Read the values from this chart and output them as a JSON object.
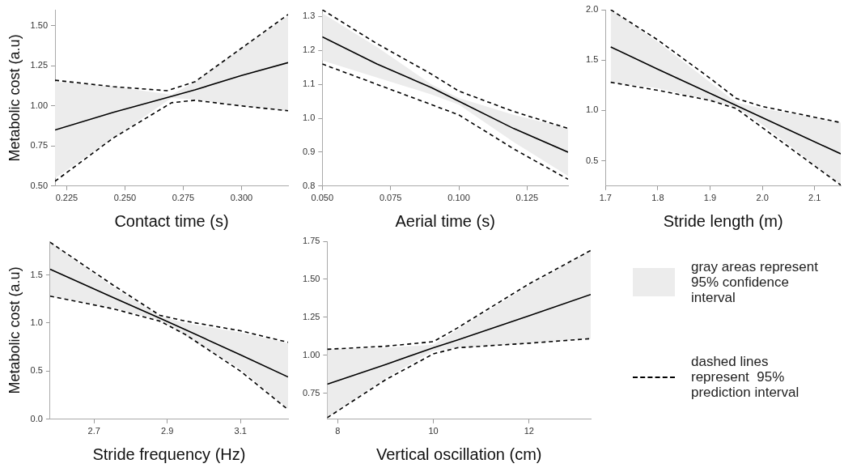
{
  "chart_data": [
    {
      "type": "line",
      "xlabel": "Contact time (s)",
      "ylabel": "Metabolic cost (a.u)",
      "xlim": [
        0.22,
        0.32
      ],
      "ylim": [
        0.5,
        1.6
      ],
      "xticks": [
        {
          "value": 0.225,
          "label": "0.225"
        },
        {
          "value": 0.25,
          "label": "0.250"
        },
        {
          "value": 0.275,
          "label": "0.275"
        },
        {
          "value": 0.3,
          "label": "0.300"
        }
      ],
      "yticks": [
        {
          "value": 0.5,
          "label": "0.50"
        },
        {
          "value": 0.75,
          "label": "0.75"
        },
        {
          "value": 1,
          "label": "1.00"
        },
        {
          "value": 1.25,
          "label": "1.25"
        },
        {
          "value": 1.5,
          "label": "1.50"
        }
      ],
      "grid": false,
      "legend": false,
      "marker": "none",
      "series": [
        {
          "color": "#000000",
          "line_style": "solid",
          "x": [
            0.22,
            0.245,
            0.27,
            0.28,
            0.3,
            0.32
          ],
          "values": [
            0.85,
            0.96,
            1.06,
            1.1,
            1.19,
            1.27
          ],
          "lower": [
            0.55,
            0.8,
            1.05,
            1.04,
            1.0,
            0.97
          ],
          "upper": [
            1.15,
            1.12,
            1.07,
            1.15,
            1.36,
            1.56
          ]
        },
        {
          "color": "#000000",
          "line_style": "dashed",
          "x": [
            0.22,
            0.245,
            0.268,
            0.28,
            0.3,
            0.32
          ],
          "values": [
            1.16,
            1.12,
            1.095,
            1.15,
            1.36,
            1.57
          ]
        },
        {
          "color": "#000000",
          "line_style": "dashed",
          "x": [
            0.22,
            0.245,
            0.27,
            0.28,
            0.3,
            0.32
          ],
          "values": [
            0.53,
            0.8,
            1.02,
            1.035,
            1.0,
            0.97
          ]
        }
      ]
    },
    {
      "type": "line",
      "xlabel": "Aerial time (s)",
      "xlim": [
        0.05,
        0.14
      ],
      "ylim": [
        0.8,
        1.32
      ],
      "xticks": [
        {
          "value": 0.05,
          "label": "0.050"
        },
        {
          "value": 0.075,
          "label": "0.075"
        },
        {
          "value": 0.1,
          "label": "0.100"
        },
        {
          "value": 0.125,
          "label": "0.125"
        }
      ],
      "yticks": [
        0.8,
        0.9,
        {
          "value": 1,
          "label": "1.0"
        },
        1.1,
        1.2,
        1.3
      ],
      "grid": false,
      "legend": false,
      "marker": "none",
      "series": [
        {
          "color": "#000000",
          "line_style": "solid",
          "x": [
            0.05,
            0.07,
            0.09,
            0.1,
            0.12,
            0.14
          ],
          "values": [
            1.24,
            1.16,
            1.09,
            1.05,
            0.97,
            0.9
          ],
          "lower": [
            1.17,
            1.12,
            1.07,
            1.04,
            0.93,
            0.83
          ],
          "upper": [
            1.31,
            1.21,
            1.1,
            1.06,
            1.01,
            0.97
          ]
        },
        {
          "color": "#000000",
          "line_style": "dashed",
          "x": [
            0.05,
            0.07,
            0.09,
            0.1,
            0.12,
            0.14
          ],
          "values": [
            1.32,
            1.22,
            1.13,
            1.08,
            1.02,
            0.97
          ]
        },
        {
          "color": "#000000",
          "line_style": "dashed",
          "x": [
            0.05,
            0.07,
            0.09,
            0.1,
            0.12,
            0.14
          ],
          "values": [
            1.16,
            1.1,
            1.04,
            1.01,
            0.91,
            0.82
          ]
        }
      ]
    },
    {
      "type": "line",
      "xlabel": "Stride length (m)",
      "xlim": [
        1.7,
        2.15
      ],
      "ylim": [
        0.25,
        2.0
      ],
      "xticks": [
        1.7,
        1.8,
        1.9,
        {
          "value": 2,
          "label": "2.0"
        },
        2.1
      ],
      "yticks": [
        0.5,
        {
          "value": 1,
          "label": "1.0"
        },
        1.5,
        {
          "value": 2,
          "label": "2.0"
        }
      ],
      "grid": false,
      "legend": false,
      "marker": "none",
      "series": [
        {
          "color": "#000000",
          "line_style": "solid",
          "x": [
            1.71,
            1.8,
            1.9,
            1.95,
            2.0,
            2.15
          ],
          "values": [
            1.63,
            1.41,
            1.17,
            1.05,
            0.93,
            0.57
          ],
          "lower": [
            1.28,
            1.22,
            1.1,
            1.03,
            0.86,
            0.26
          ],
          "upper": [
            2.0,
            1.68,
            1.28,
            1.08,
            1.02,
            0.88
          ]
        },
        {
          "color": "#000000",
          "line_style": "dashed",
          "x": [
            1.71,
            1.8,
            1.9,
            1.95,
            2.0,
            2.15
          ],
          "values": [
            2.0,
            1.7,
            1.32,
            1.12,
            1.04,
            0.88
          ]
        },
        {
          "color": "#000000",
          "line_style": "dashed",
          "x": [
            1.71,
            1.8,
            1.9,
            1.95,
            2.0,
            2.15
          ],
          "values": [
            1.28,
            1.2,
            1.1,
            1.02,
            0.83,
            0.26
          ]
        }
      ]
    },
    {
      "type": "line",
      "xlabel": "Stride frequency (Hz)",
      "ylabel": "Metabolic cost (a.u)",
      "xlim": [
        2.58,
        3.23
      ],
      "ylim": [
        0,
        1.85
      ],
      "xticks": [
        2.7,
        2.9,
        3.1
      ],
      "yticks": [
        {
          "value": 0,
          "label": "0.0"
        },
        0.5,
        {
          "value": 1,
          "label": "1.0"
        },
        1.5
      ],
      "grid": false,
      "legend": false,
      "marker": "none",
      "series": [
        {
          "color": "#000000",
          "line_style": "solid",
          "x": [
            2.58,
            2.75,
            2.88,
            2.95,
            3.1,
            3.23
          ],
          "values": [
            1.56,
            1.27,
            1.05,
            0.93,
            0.67,
            0.44
          ],
          "lower": [
            1.28,
            1.16,
            1.03,
            0.87,
            0.52,
            0.11
          ],
          "upper": [
            1.84,
            1.38,
            1.07,
            1.0,
            0.9,
            0.79
          ]
        },
        {
          "color": "#000000",
          "line_style": "dashed",
          "x": [
            2.58,
            2.75,
            2.88,
            2.95,
            3.1,
            3.23
          ],
          "values": [
            1.84,
            1.4,
            1.08,
            1.02,
            0.92,
            0.8
          ]
        },
        {
          "color": "#000000",
          "line_style": "dashed",
          "x": [
            2.58,
            2.75,
            2.88,
            2.95,
            3.1,
            3.23
          ],
          "values": [
            1.28,
            1.15,
            1.02,
            0.88,
            0.5,
            0.1
          ]
        }
      ]
    },
    {
      "type": "line",
      "xlabel": "Vertical oscillation (cm)",
      "xlim": [
        7.78,
        13.29
      ],
      "ylim": [
        0.58,
        1.75
      ],
      "xticks": [
        8,
        10,
        12
      ],
      "yticks": [
        {
          "value": 0.75,
          "label": "0.75"
        },
        {
          "value": 1,
          "label": "1.00"
        },
        {
          "value": 1.25,
          "label": "1.25"
        },
        {
          "value": 1.5,
          "label": "1.50"
        },
        {
          "value": 1.75,
          "label": "1.75"
        }
      ],
      "grid": false,
      "legend": false,
      "marker": "none",
      "series": [
        {
          "color": "#000000",
          "line_style": "solid",
          "x": [
            7.78,
            9.0,
            10.0,
            10.5,
            12.0,
            13.29
          ],
          "values": [
            0.81,
            0.94,
            1.05,
            1.1,
            1.26,
            1.4
          ],
          "lower": [
            0.59,
            0.85,
            1.03,
            1.05,
            1.08,
            1.11
          ],
          "upper": [
            1.04,
            1.05,
            1.07,
            1.17,
            1.46,
            1.69
          ]
        },
        {
          "color": "#000000",
          "line_style": "dashed",
          "x": [
            7.78,
            9.0,
            10.0,
            10.5,
            12.0,
            13.29
          ],
          "values": [
            1.04,
            1.06,
            1.09,
            1.18,
            1.47,
            1.69
          ]
        },
        {
          "color": "#000000",
          "line_style": "dashed",
          "x": [
            7.78,
            9.0,
            10.0,
            10.5,
            12.0,
            13.29
          ],
          "values": [
            0.59,
            0.84,
            1.01,
            1.05,
            1.08,
            1.11
          ]
        }
      ]
    },
    {
      "type": "other",
      "annotations": [
        "gray areas represent  95% confidence interval",
        "dashed lines represent  95% prediction interval"
      ]
    }
  ]
}
